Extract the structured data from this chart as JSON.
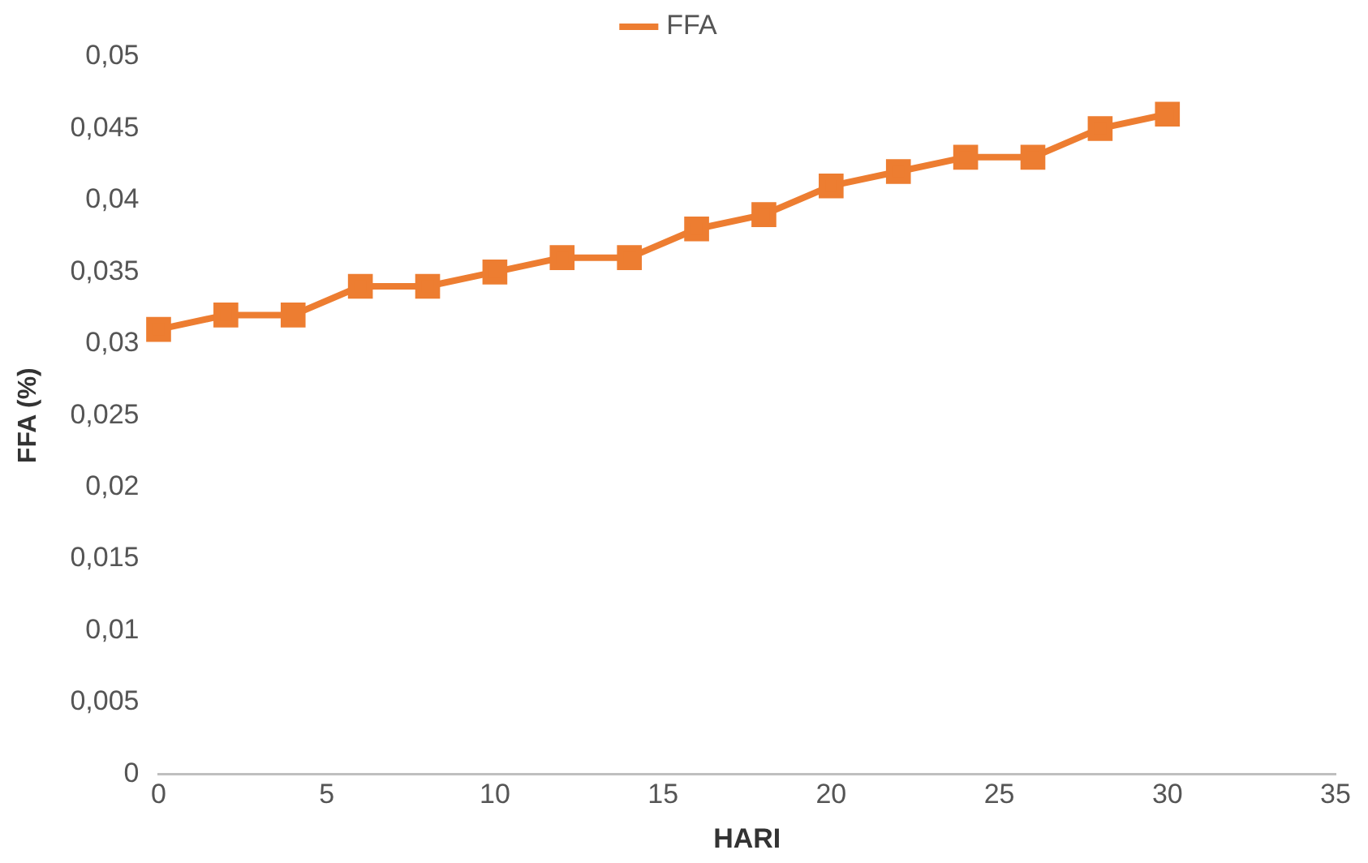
{
  "chart_data": {
    "type": "line",
    "xlabel": "HARI",
    "ylabel": "FFA (%)",
    "x": [
      0,
      2,
      4,
      6,
      8,
      10,
      12,
      14,
      16,
      18,
      20,
      22,
      24,
      26,
      28,
      30
    ],
    "series": [
      {
        "name": "FFA",
        "color": "#ed7d31",
        "values": [
          0.031,
          0.032,
          0.032,
          0.034,
          0.034,
          0.035,
          0.036,
          0.036,
          0.038,
          0.039,
          0.041,
          0.042,
          0.043,
          0.043,
          0.045,
          0.046
        ]
      }
    ],
    "xlim": [
      0,
      35
    ],
    "xticks": [
      0,
      5,
      10,
      15,
      20,
      25,
      30,
      35
    ],
    "ylim": [
      0,
      0.05
    ],
    "yticks": [
      {
        "value": 0,
        "label": "0"
      },
      {
        "value": 0.005,
        "label": "0,005"
      },
      {
        "value": 0.01,
        "label": "0,01"
      },
      {
        "value": 0.015,
        "label": "0,015"
      },
      {
        "value": 0.02,
        "label": "0,02"
      },
      {
        "value": 0.025,
        "label": "0,025"
      },
      {
        "value": 0.03,
        "label": "0,03"
      },
      {
        "value": 0.035,
        "label": "0,035"
      },
      {
        "value": 0.04,
        "label": "0,04"
      },
      {
        "value": 0.045,
        "label": "0,045"
      },
      {
        "value": 0.05,
        "label": "0,05"
      }
    ],
    "grid": false,
    "legend": "top",
    "marker": "square",
    "line_style": "solid"
  }
}
